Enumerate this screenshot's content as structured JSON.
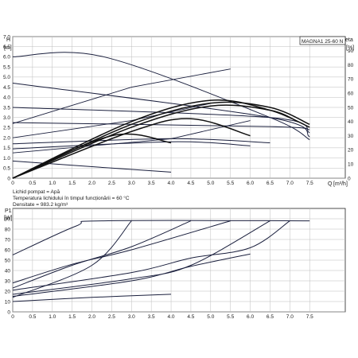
{
  "chart_data": [
    {
      "type": "line",
      "model_label": "MAGNA1 25-60 N",
      "ylabel": "H",
      "yunit": "[m]",
      "y2label": "eta",
      "y2unit": "[%]",
      "xlabel": "Q",
      "xunit": "[m³/h]",
      "xlim": [
        0,
        8.4
      ],
      "ylim": [
        0,
        7.0
      ],
      "y2lim": [
        0,
        100
      ],
      "grid": true,
      "xticks": [
        "0",
        "0.5",
        "1.0",
        "1.5",
        "2.0",
        "2.5",
        "3.0",
        "3.5",
        "4.0",
        "4.5",
        "5.0",
        "5.5",
        "6.0",
        "6.5",
        "7.0",
        "7.5"
      ],
      "yticks": [
        "0",
        "0.5",
        "1.0",
        "1.5",
        "2.0",
        "2.5",
        "3.0",
        "3.5",
        "4.0",
        "4.5",
        "5.0",
        "5.5",
        "6.0",
        "6.5",
        "7.0"
      ],
      "y2ticks": [
        "0",
        "10",
        "20",
        "30",
        "40",
        "50",
        "60",
        "70",
        "80",
        "90"
      ],
      "head_curves": [
        {
          "x": [
            0,
            2.3,
            6.5,
            7.5
          ],
          "y": [
            6.0,
            6.0,
            3.0,
            1.9
          ]
        },
        {
          "x": [
            0,
            6.5,
            7.5
          ],
          "y": [
            4.7,
            3.0,
            2.05
          ]
        },
        {
          "x": [
            0,
            6.5,
            7.5
          ],
          "y": [
            3.5,
            3.0,
            2.25
          ]
        },
        {
          "x": [
            0,
            6.5,
            7.5
          ],
          "y": [
            2.75,
            2.55,
            2.4
          ]
        },
        {
          "x": [
            0,
            4.0,
            6.5
          ],
          "y": [
            1.7,
            1.95,
            1.75
          ]
        },
        {
          "x": [
            0,
            4.0,
            6.0
          ],
          "y": [
            1.45,
            1.8,
            1.6
          ]
        },
        {
          "x": [
            0,
            2.5,
            4.0
          ],
          "y": [
            0.85,
            0.5,
            0.3
          ]
        }
      ],
      "system_curves": [
        {
          "x": [
            0,
            3.0,
            5.5
          ],
          "y": [
            2.7,
            4.5,
            5.4
          ]
        },
        {
          "x": [
            0,
            3.0,
            5.0
          ],
          "y": [
            2.0,
            2.85,
            3.7
          ]
        },
        {
          "x": [
            0,
            4.0,
            6.0
          ],
          "y": [
            1.25,
            1.95,
            2.85
          ]
        }
      ],
      "efficiency_curves": [
        {
          "x": [
            0,
            3.0,
            5.0,
            6.5,
            7.5
          ],
          "y": [
            0,
            40,
            55,
            48,
            36
          ]
        },
        {
          "x": [
            0,
            3.0,
            5.0,
            6.5,
            7.5
          ],
          "y": [
            0,
            38,
            53,
            50,
            38
          ]
        },
        {
          "x": [
            0,
            3.0,
            5.0,
            6.5,
            7.2
          ],
          "y": [
            0,
            36,
            51,
            48,
            40
          ]
        },
        {
          "x": [
            0,
            3.0,
            4.5,
            6.0
          ],
          "y": [
            0,
            33,
            42,
            30
          ]
        },
        {
          "x": [
            0,
            2.5,
            4.0
          ],
          "y": [
            0,
            30,
            25
          ]
        }
      ],
      "notes": [
        "Lichid pompat = Apă",
        "Temperatura lichidului în timpul funcționării = 60 °C",
        "Densitate = 983.2 kg/m³"
      ]
    },
    {
      "type": "line",
      "ylabel": "P1",
      "yunit": "[W]",
      "xlim": [
        0,
        8.4
      ],
      "ylim": [
        0,
        100
      ],
      "grid": true,
      "xticks": [
        "0",
        "0.5",
        "1.0",
        "1.5",
        "2.0",
        "2.5",
        "3.0",
        "3.5",
        "4.0",
        "4.5",
        "5.0",
        "5.5",
        "6.0",
        "6.5",
        "7.0",
        "7.5"
      ],
      "yticks": [
        "0",
        "10",
        "20",
        "30",
        "40",
        "50",
        "60",
        "70",
        "80",
        "90"
      ],
      "power_curves": [
        {
          "x": [
            0,
            1.6,
            2.3,
            7.5
          ],
          "y": [
            55,
            83,
            88,
            88
          ]
        },
        {
          "x": [
            0,
            1.5,
            3.0,
            5.5
          ],
          "y": [
            28,
            46,
            60,
            88
          ]
        },
        {
          "x": [
            0,
            1.5,
            3.0,
            4.5
          ],
          "y": [
            23,
            45,
            63,
            88
          ]
        },
        {
          "x": [
            0,
            2.0,
            3.0
          ],
          "y": [
            14,
            45,
            88
          ]
        },
        {
          "x": [
            0,
            3.0,
            4.5,
            6.0,
            7.0
          ],
          "y": [
            21,
            38,
            52,
            62,
            88
          ]
        },
        {
          "x": [
            0,
            3.0,
            4.5,
            6.5
          ],
          "y": [
            17,
            32,
            45,
            88
          ]
        },
        {
          "x": [
            0,
            3.0,
            4.5,
            6.0
          ],
          "y": [
            15,
            30,
            44,
            56
          ]
        },
        {
          "x": [
            0,
            2.0,
            4.0
          ],
          "y": [
            10,
            14,
            17
          ]
        }
      ]
    }
  ]
}
